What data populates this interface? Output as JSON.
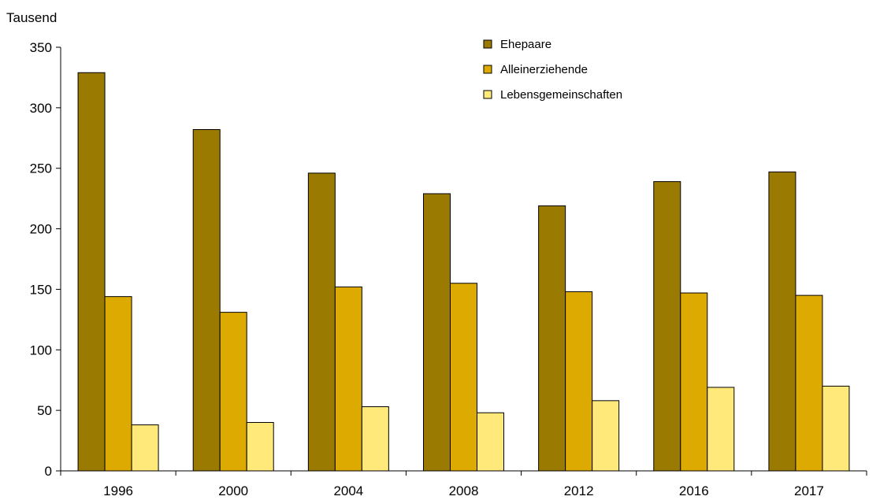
{
  "chart_data": {
    "type": "bar",
    "title": "",
    "xlabel": "",
    "ylabel": "Tausend",
    "ylim": [
      0,
      350
    ],
    "yticks": [
      0,
      50,
      100,
      150,
      200,
      250,
      300,
      350
    ],
    "grid": false,
    "legend_position": "top-right",
    "categories": [
      "1996",
      "2000",
      "2004",
      "2008",
      "2012",
      "2016",
      "2017"
    ],
    "series": [
      {
        "name": "Ehepaare",
        "color": "#9A7A00",
        "values": [
          329,
          282,
          246,
          229,
          219,
          239,
          247
        ]
      },
      {
        "name": "Alleinerziehende",
        "color": "#DCAA00",
        "values": [
          144,
          131,
          152,
          155,
          148,
          147,
          145
        ]
      },
      {
        "name": "Lebensgemeinschaften",
        "color": "#FFE97A",
        "values": [
          38,
          40,
          53,
          48,
          58,
          69,
          70
        ]
      }
    ]
  }
}
